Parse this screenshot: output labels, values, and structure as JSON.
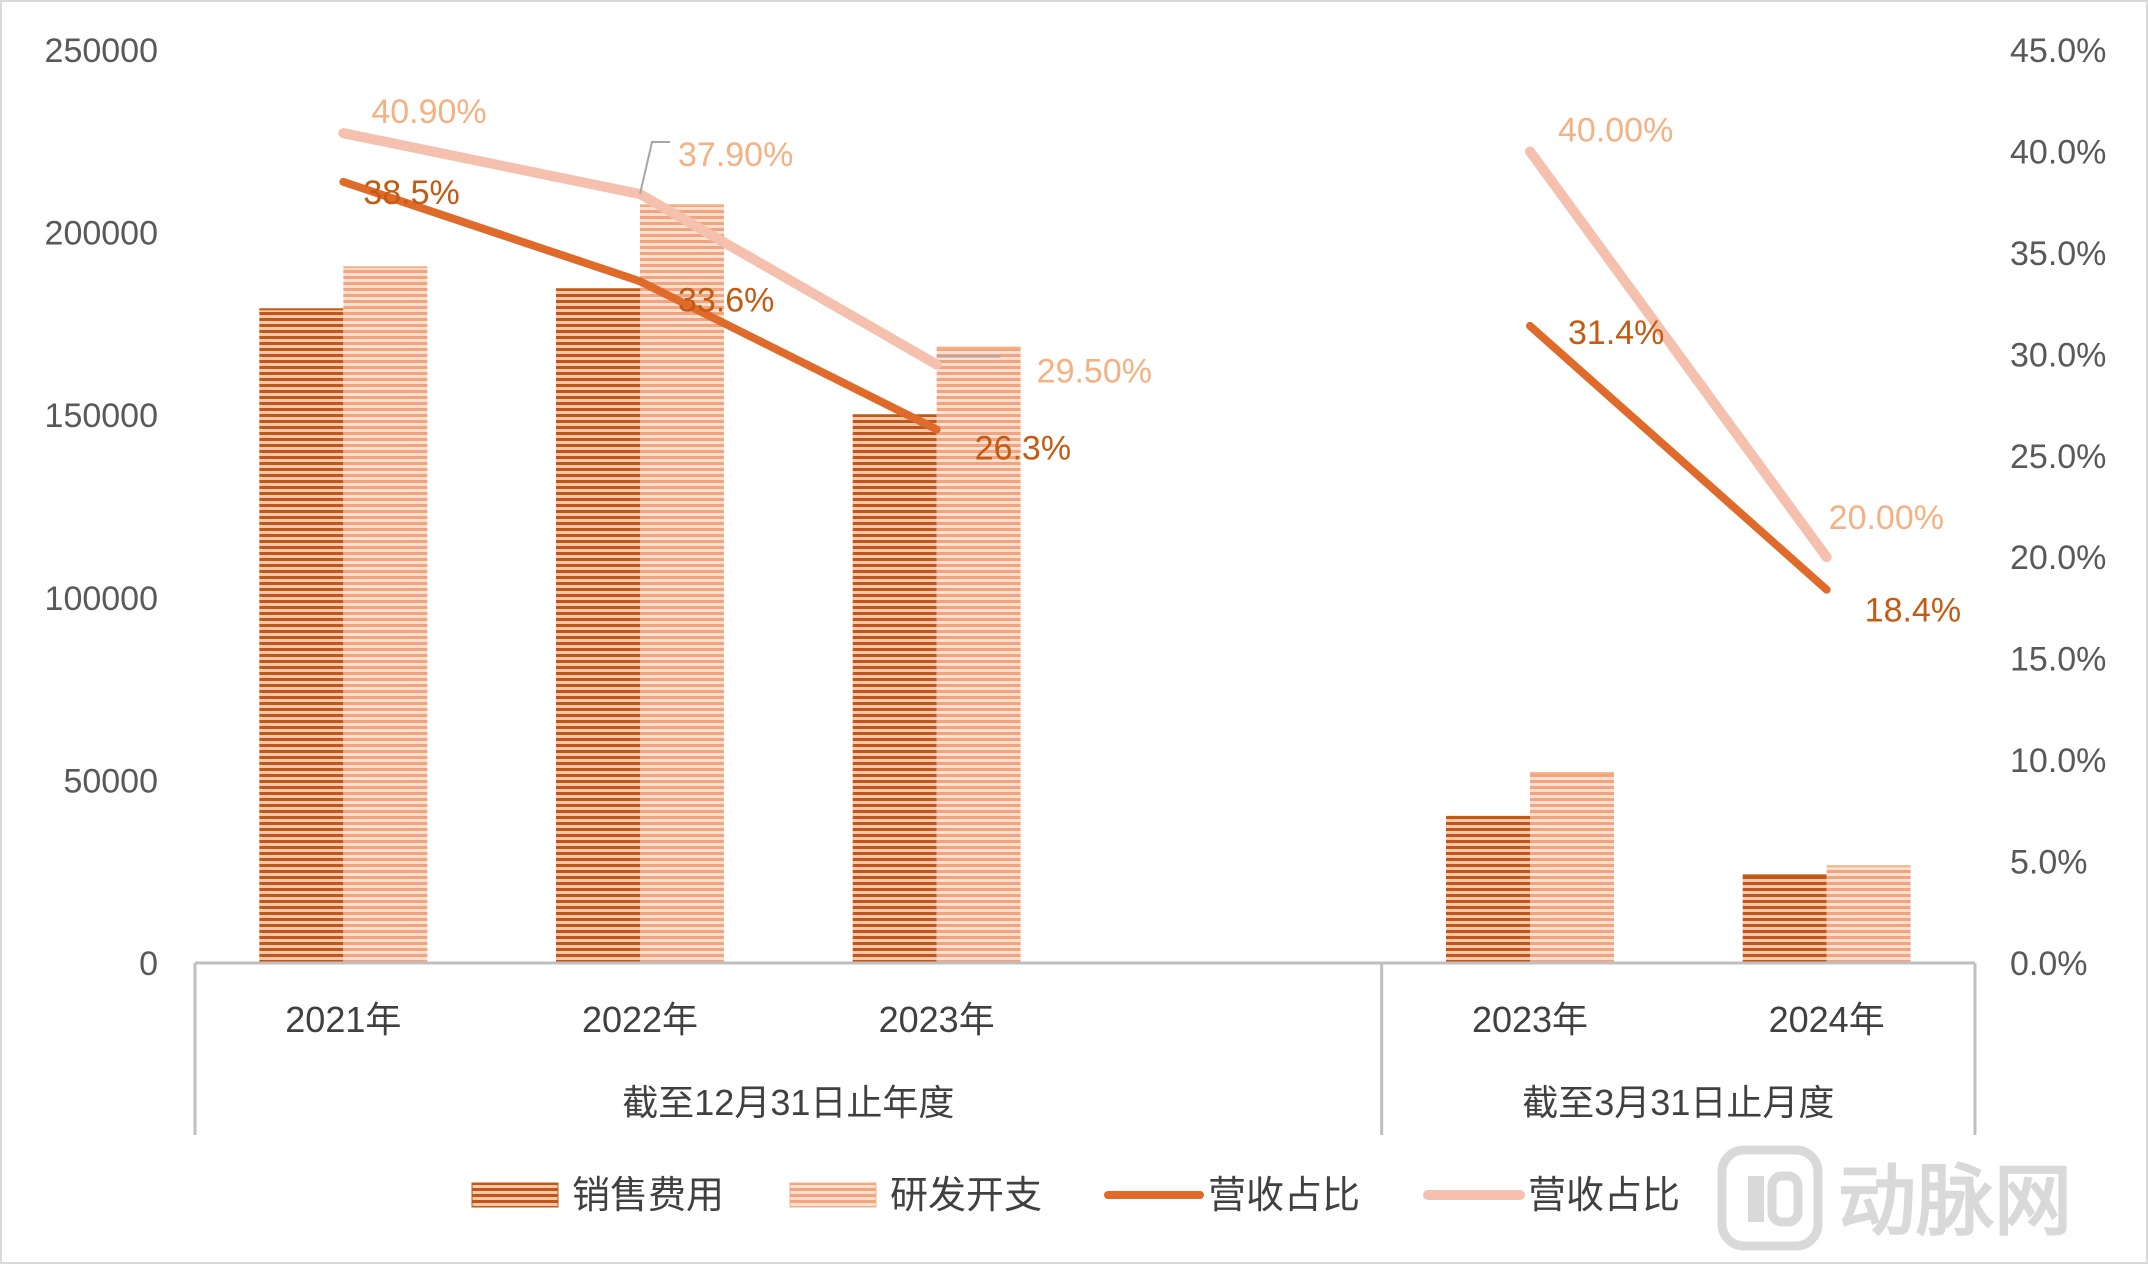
{
  "chart_data": {
    "type": "bar",
    "left_axis": {
      "min": 0,
      "max": 250000,
      "ticks": [
        "0",
        "50000",
        "100000",
        "150000",
        "200000",
        "250000"
      ]
    },
    "right_axis": {
      "min": 0,
      "max": 45,
      "ticks": [
        "0.0%",
        "5.0%",
        "10.0%",
        "15.0%",
        "20.0%",
        "25.0%",
        "30.0%",
        "35.0%",
        "40.0%",
        "45.0%"
      ]
    },
    "categories": [
      "2021年",
      "2022年",
      "2023年",
      "",
      "2023年",
      "2024年"
    ],
    "groups": [
      {
        "label": "截至12月31日止年度",
        "categories": [
          0,
          1,
          2,
          3
        ]
      },
      {
        "label": "截至3月31日止月度",
        "categories": [
          4,
          5
        ]
      }
    ],
    "bar_series": [
      {
        "name": "销售费用",
        "color": "#C55A11",
        "values": [
          179000,
          184500,
          150000,
          null,
          40000,
          24000
        ]
      },
      {
        "name": "研发开支",
        "color": "#F4B183",
        "values": [
          190500,
          207500,
          168500,
          null,
          52000,
          26500
        ]
      }
    ],
    "line_series": [
      {
        "name": "营收占比",
        "color": "#E06A2A",
        "values": [
          38.5,
          33.6,
          26.3,
          null,
          31.4,
          18.4
        ],
        "labels": [
          "38.5%",
          "33.6%",
          "26.3%",
          "",
          "31.4%",
          "18.4%"
        ]
      },
      {
        "name": "营收占比",
        "color": "#F5C0AE",
        "values": [
          40.9,
          37.9,
          29.5,
          null,
          40.0,
          20.0
        ],
        "labels": [
          "40.90%",
          "37.90%",
          "29.50%",
          "",
          "40.00%",
          "20.00%"
        ]
      }
    ],
    "legend_position": "bottom",
    "grid": false
  },
  "watermark": {
    "text": "动脉网"
  }
}
